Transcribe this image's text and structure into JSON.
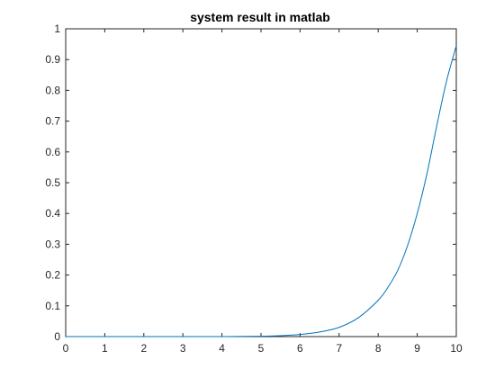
{
  "chart_data": {
    "type": "line",
    "title": "system result in matlab",
    "xlabel": "",
    "ylabel": "",
    "xlim": [
      0,
      10
    ],
    "ylim": [
      0,
      1
    ],
    "grid": false,
    "x_ticks": [
      0,
      1,
      2,
      3,
      4,
      5,
      6,
      7,
      8,
      9,
      10
    ],
    "y_ticks": [
      0,
      0.1,
      0.2,
      0.3,
      0.4,
      0.5,
      0.6,
      0.7,
      0.8,
      0.9,
      1
    ],
    "y_tick_labels": [
      "0",
      "0.1",
      "0.2",
      "0.3",
      "0.4",
      "0.5",
      "0.6",
      "0.7",
      "0.8",
      "0.9",
      "1"
    ],
    "series": [
      {
        "color": "#0072BD",
        "x": [
          0,
          1,
          2,
          3,
          4,
          5,
          5.5,
          6,
          6.5,
          7,
          7.5,
          8,
          8.25,
          8.5,
          8.75,
          9,
          9.25,
          9.5,
          9.75,
          10
        ],
        "y": [
          0,
          0,
          0,
          0,
          0,
          0.001,
          0.003,
          0.007,
          0.015,
          0.03,
          0.062,
          0.118,
          0.16,
          0.215,
          0.295,
          0.4,
          0.53,
          0.685,
          0.83,
          0.945
        ]
      }
    ]
  }
}
